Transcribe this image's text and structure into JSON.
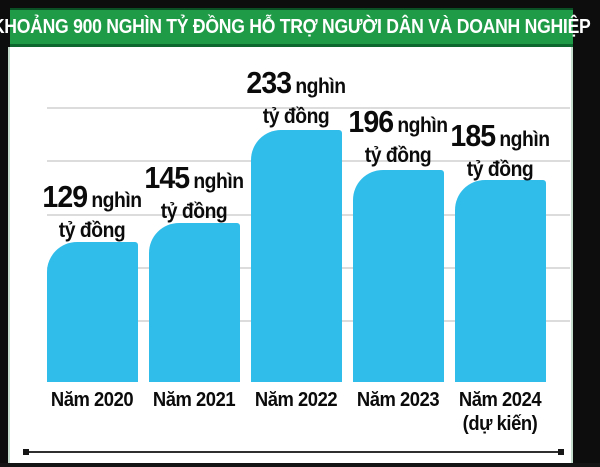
{
  "header": {
    "title": "KHOẢNG 900 NGHÌN TỶ ĐỒNG HỖ TRỢ NGƯỜI DÂN VÀ DOANH NGHIỆP"
  },
  "chart_data": {
    "type": "bar",
    "title": "KHOẢNG 900 NGHÌN TỶ ĐỒNG HỖ TRỢ NGƯỜI DÂN VÀ DOANH NGHIỆP",
    "categories": [
      "Năm 2020",
      "Năm 2021",
      "Năm 2022",
      "Năm 2023",
      "Năm 2024 (dự kiến)"
    ],
    "values": [
      129,
      145,
      233,
      196,
      185
    ],
    "value_unit": "nghìn tỷ đồng",
    "xlabel": "",
    "ylabel": "",
    "ylim": [
      0,
      260
    ],
    "gridline_values": [
      50,
      100,
      150,
      200,
      250
    ],
    "grid": true,
    "legend_position": "none",
    "bar_color": "#31bdea"
  },
  "value_labels": [
    {
      "num": "129",
      "suffix": "nghìn",
      "line2": "tỷ đồng"
    },
    {
      "num": "145",
      "suffix": "nghìn",
      "line2": "tỷ đồng"
    },
    {
      "num": "233",
      "suffix": "nghìn",
      "line2": "tỷ đồng"
    },
    {
      "num": "196",
      "suffix": "nghìn",
      "line2": "tỷ đồng"
    },
    {
      "num": "185",
      "suffix": "nghìn",
      "line2": "tỷ đồng"
    }
  ],
  "year_labels": [
    {
      "line1": "Năm 2020",
      "line2": ""
    },
    {
      "line1": "Năm 2021",
      "line2": ""
    },
    {
      "line1": "Năm 2022",
      "line2": ""
    },
    {
      "line1": "Năm 2023",
      "line2": ""
    },
    {
      "line1": "Năm 2024",
      "line2": "(dự kiến)"
    }
  ],
  "colors": {
    "banner_green": "#1f9b47",
    "banner_green_dark": "#0d6830",
    "bar_blue": "#31bdea",
    "panel_white": "#ffffff",
    "background_black": "#0d0d0d",
    "gridline_gray": "#dcdcdc",
    "text_black": "#0b0b0b"
  }
}
